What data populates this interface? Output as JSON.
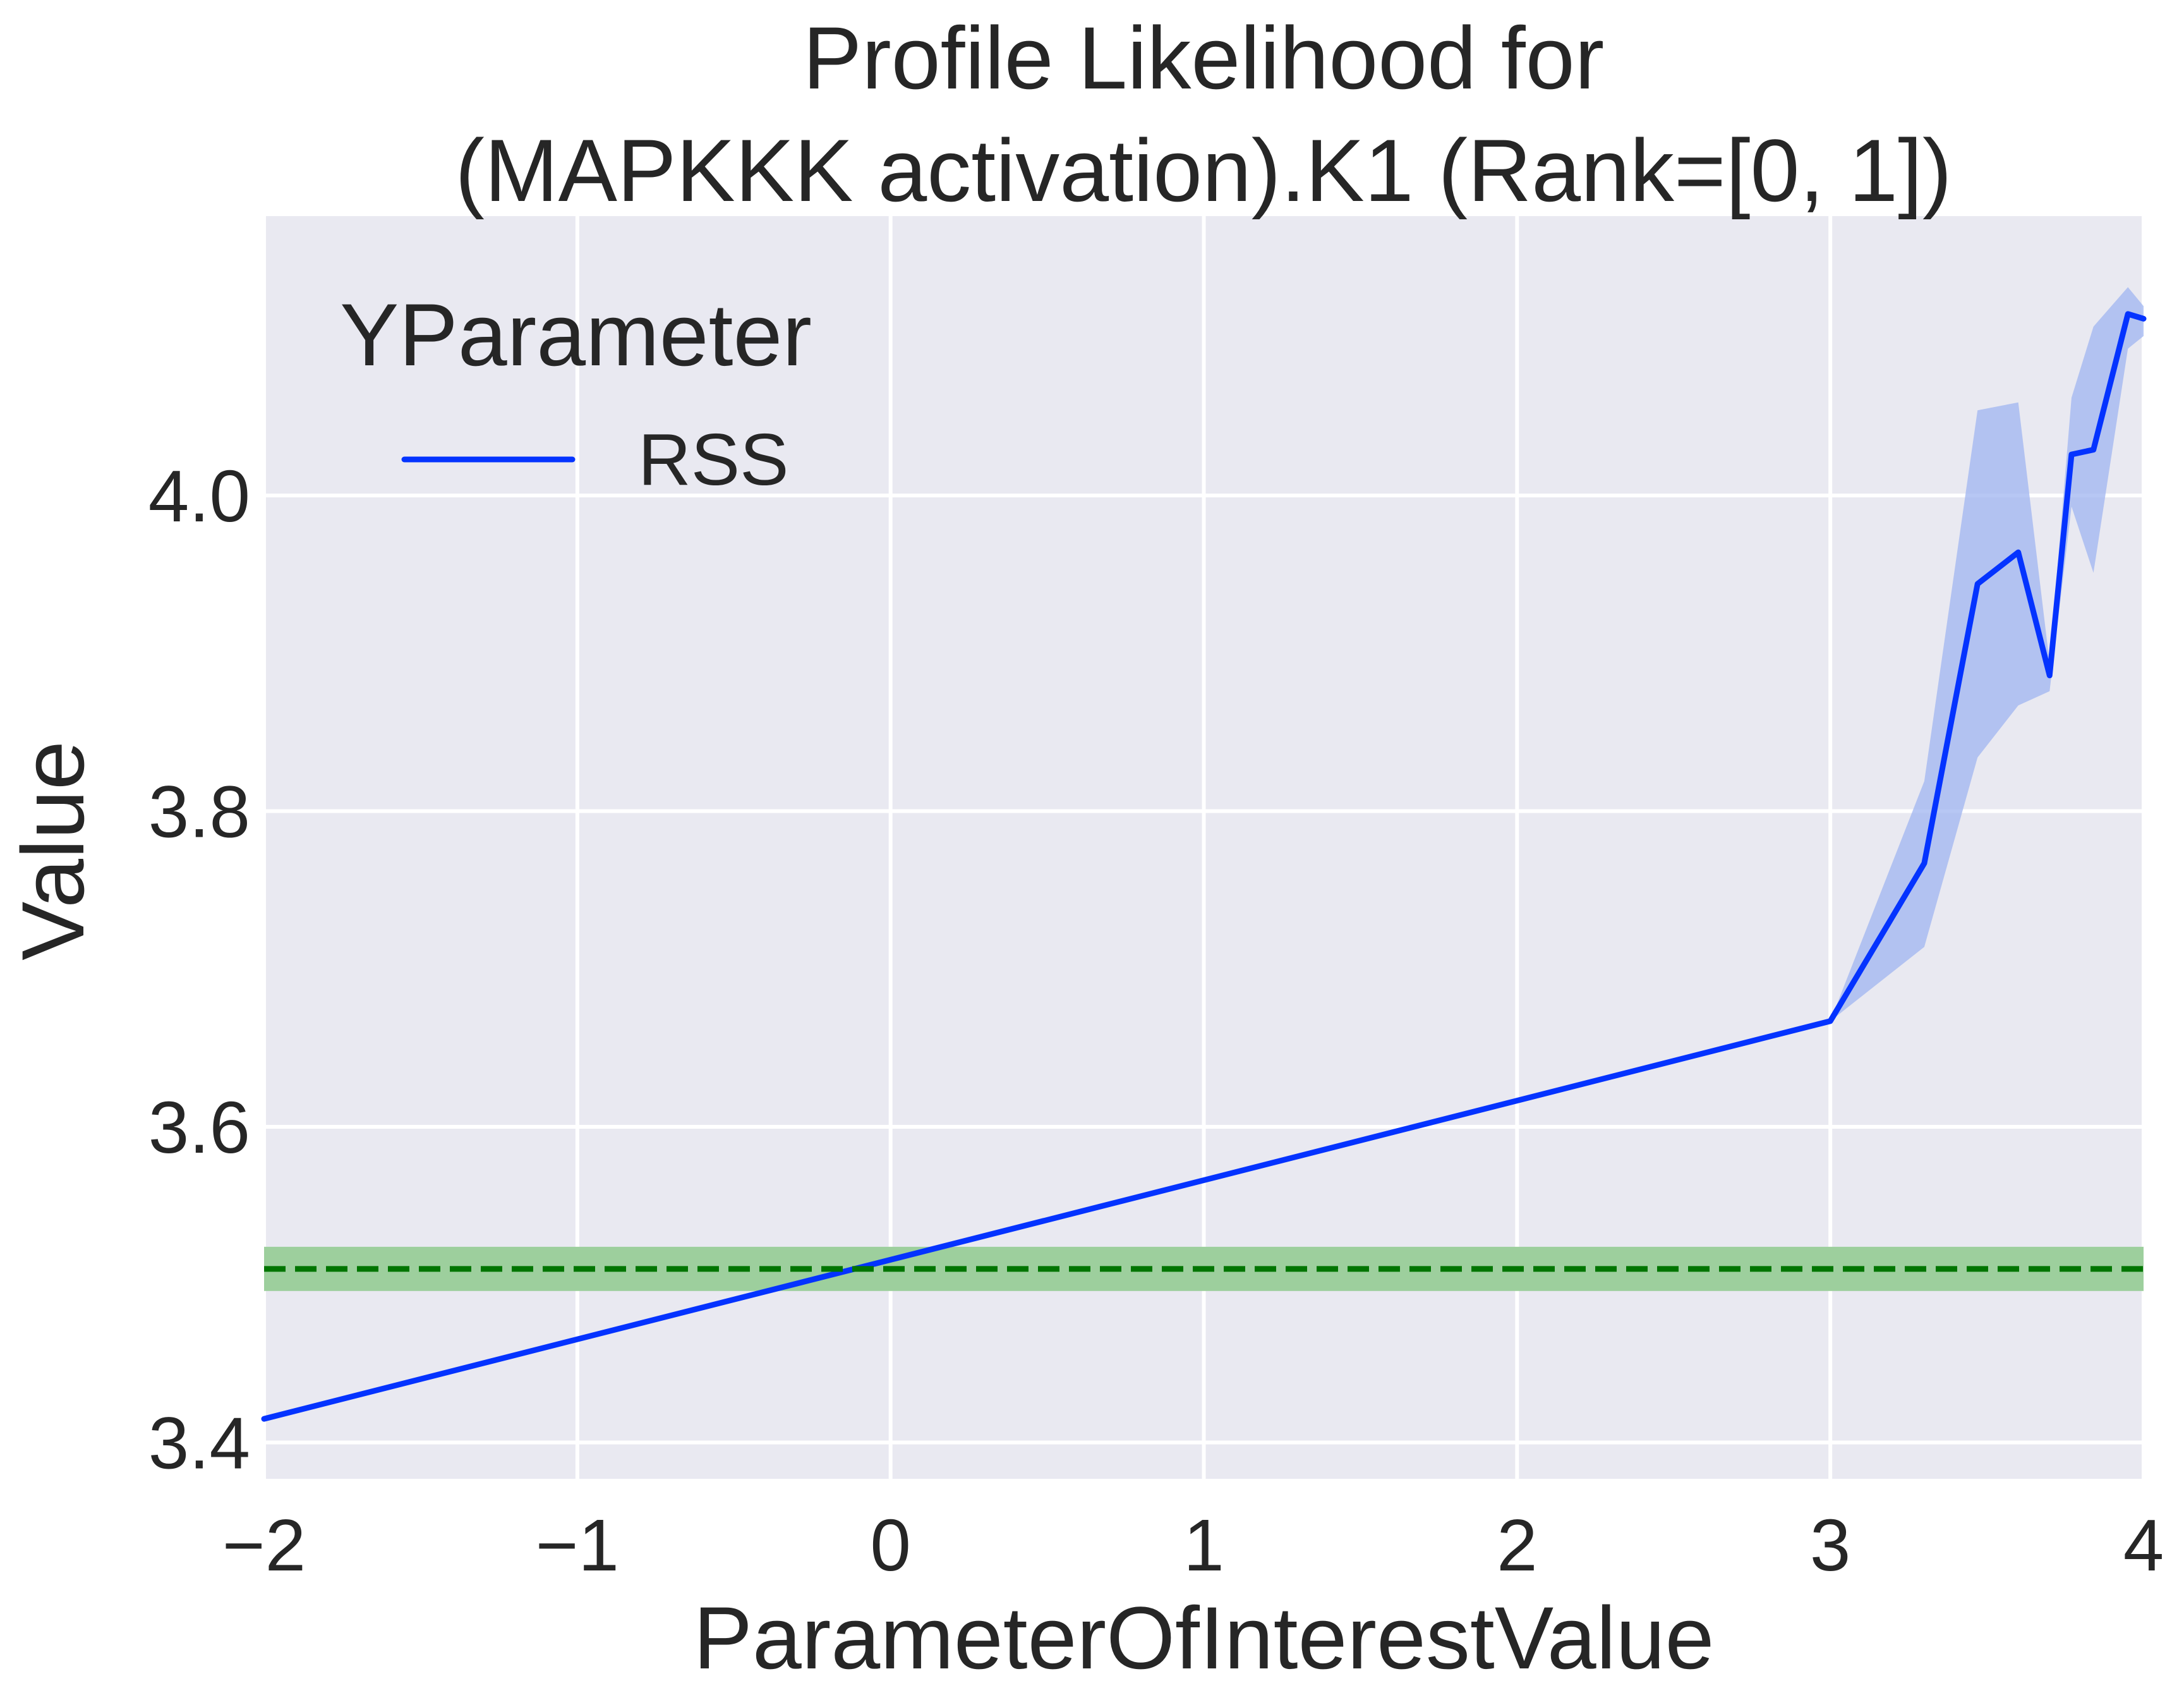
{
  "chart_data": {
    "type": "line",
    "title": "Profile Likelihood for\n(MAPKKK activation).K1 (Rank=[0, 1])",
    "xlabel": "ParameterOfInterestValue",
    "ylabel": "Value",
    "xlim": [
      -2,
      4
    ],
    "ylim": [
      3.377,
      4.177
    ],
    "xticks": [
      -2,
      -1,
      0,
      1,
      2,
      3,
      4
    ],
    "xtick_labels": [
      "−2",
      "−1",
      "0",
      "1",
      "2",
      "3",
      "4"
    ],
    "yticks": [
      3.4,
      3.6,
      3.8,
      4.0
    ],
    "ytick_labels": [
      "3.4",
      "3.6",
      "3.8",
      "4.0"
    ],
    "grid": true,
    "legend": {
      "title": "YParameter",
      "placement": "top-left",
      "entries": [
        "RSS"
      ]
    },
    "series": [
      {
        "name": "RSS",
        "color": "#0433ff",
        "x": [
          -2,
          3,
          3.3,
          3.47,
          3.6,
          3.7,
          3.77,
          3.84,
          3.95,
          4.0
        ],
        "y": [
          3.415,
          3.667,
          3.767,
          3.944,
          3.964,
          3.886,
          4.026,
          4.029,
          4.115,
          4.112
        ],
        "band_lower": [
          3.415,
          3.667,
          3.714,
          3.834,
          3.867,
          3.876,
          3.993,
          3.951,
          4.093,
          4.101
        ],
        "band_upper": [
          3.415,
          3.667,
          3.819,
          4.054,
          4.059,
          3.894,
          4.062,
          4.107,
          4.132,
          4.12
        ],
        "band_color": "#9fb4f0"
      }
    ],
    "reference_line": {
      "y": 3.51,
      "band": [
        3.496,
        3.524
      ],
      "color": "#007500",
      "band_color": "#9dcf9d",
      "style": "dashed"
    }
  }
}
